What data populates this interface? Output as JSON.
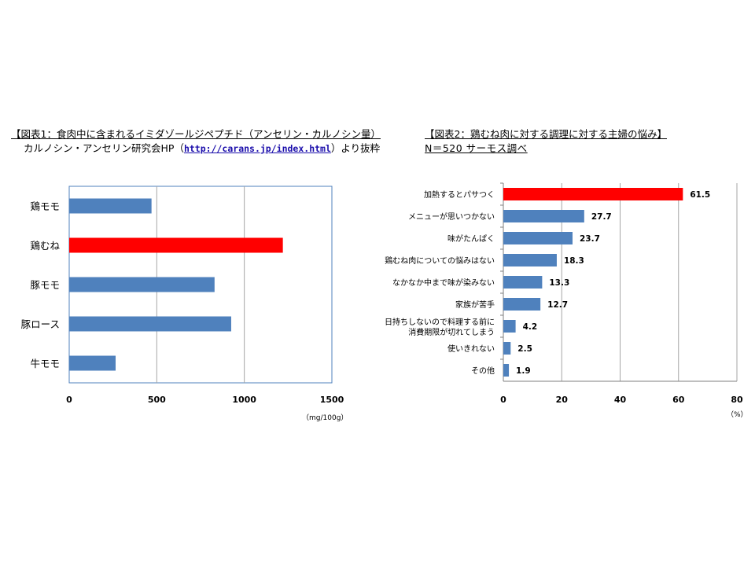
{
  "chart1": {
    "title": "【図表1：食肉中に含まれるイミダゾールジペプチド（アンセリン・カルノシン量）",
    "source_prefix": "カルノシン・アンセリン研究会HP（",
    "source_link": "http://carans.jp/index.html",
    "source_suffix": "）より抜粋",
    "unit": "（mg/100g）"
  },
  "chart2": {
    "title": "【図表2：鶏むね肉に対する調理に対する主婦の悩み】",
    "subtitle": "N＝520 サーモス調べ",
    "unit": "（%）"
  },
  "chart_data": [
    {
      "type": "bar",
      "orientation": "horizontal",
      "title": "【図表1：食肉中に含まれるイミダゾールジペプチド（アンセリン・カルノシン量）",
      "categories": [
        "鶏モモ",
        "鶏むね",
        "豚モモ",
        "豚ロース",
        "牛モモ"
      ],
      "values": [
        470,
        1220,
        830,
        925,
        265
      ],
      "highlight_index": 1,
      "xlim": [
        0,
        1500
      ],
      "xticks": [
        0,
        500,
        1000,
        1500
      ],
      "xunit": "（mg/100g）",
      "grid": true,
      "colors": {
        "bar": "#4f81bd",
        "highlight": "#ff0000",
        "grid": "#a6a6a6",
        "frame": "#4f81bd"
      }
    },
    {
      "type": "bar",
      "orientation": "horizontal",
      "title": "【図表2：鶏むね肉に対する調理に対する主婦の悩み】",
      "categories": [
        [
          "加熱するとパサつく"
        ],
        [
          "メニューが思いつかない"
        ],
        [
          "味がたんぱく"
        ],
        [
          "鶏むね肉についての悩みはない"
        ],
        [
          "なかなか中まで味が染みない"
        ],
        [
          "家族が苦手"
        ],
        [
          "日持ちしないので料理する前に",
          "消費期限が切れてしまう"
        ],
        [
          "使いきれない"
        ],
        [
          "その他"
        ]
      ],
      "values": [
        61.5,
        27.7,
        23.7,
        18.3,
        13.3,
        12.7,
        4.2,
        2.5,
        1.9
      ],
      "data_labels": [
        "61.5",
        "27.7",
        "23.7",
        "18.3",
        "13.3",
        "12.7",
        "4.2",
        "2.5",
        "1.9"
      ],
      "highlight_index": 0,
      "xlim": [
        0,
        80
      ],
      "xticks": [
        0,
        20,
        40,
        60,
        80
      ],
      "xunit": "（%）",
      "grid": true,
      "colors": {
        "bar": "#4f81bd",
        "highlight": "#ff0000",
        "grid": "#a6a6a6"
      }
    }
  ]
}
